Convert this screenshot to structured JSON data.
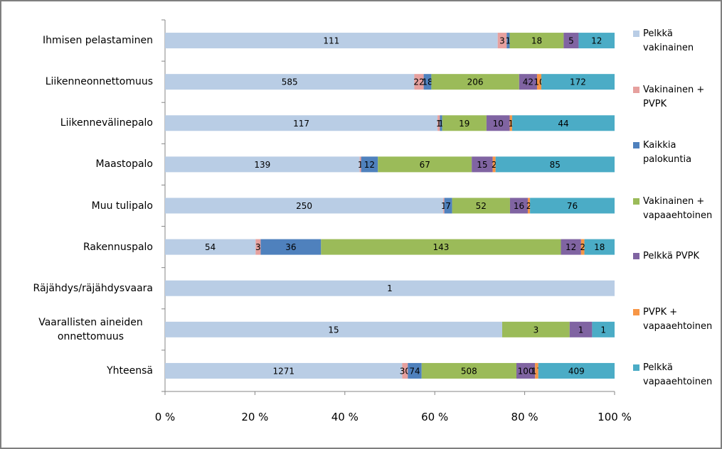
{
  "chart_data": {
    "type": "stacked-bar-100",
    "orientation": "horizontal",
    "categories": [
      "Ihmisen pelastaminen",
      "Liikenneonnettomuus",
      "Liikennevälinepalo",
      "Maastopalo",
      "Muu tulipalo",
      "Rakennuspalo",
      "Räjähdys/räjähdysvaara",
      "Vaarallisten aineiden onnettomuus",
      "Yhteensä"
    ],
    "series": [
      {
        "name": "Pelkkä vakinainen",
        "color": "#b9cde5",
        "values": [
          111,
          585,
          117,
          139,
          250,
          54,
          1,
          15,
          1271
        ]
      },
      {
        "name": "Vakinainen + PVPK",
        "color": "#e6a09e",
        "values": [
          3,
          22,
          1,
          1,
          1,
          3,
          null,
          null,
          30
        ]
      },
      {
        "name": "Kaikkia palokuntia",
        "color": "#4f81bd",
        "values": [
          1,
          18,
          1,
          12,
          7,
          36,
          null,
          null,
          74
        ]
      },
      {
        "name": "Vakinainen + vapaaehtoinen",
        "color": "#9bbb59",
        "values": [
          18,
          206,
          19,
          67,
          52,
          143,
          null,
          3,
          508
        ]
      },
      {
        "name": "Pelkkä PVPK",
        "color": "#8064a2",
        "values": [
          5,
          42,
          10,
          15,
          16,
          12,
          null,
          1,
          100
        ]
      },
      {
        "name": "PVPK + vapaaehtoinen",
        "color": "#f79646",
        "values": [
          null,
          10,
          1,
          2,
          2,
          2,
          null,
          null,
          17
        ]
      },
      {
        "name": "Pelkkä vapaaehtoinen",
        "color": "#4bacc6",
        "values": [
          12,
          172,
          44,
          85,
          76,
          18,
          null,
          1,
          409
        ]
      }
    ],
    "xlim": [
      0,
      100
    ],
    "xticks": [
      {
        "value": 0,
        "label": "0 %"
      },
      {
        "value": 20,
        "label": "20 %"
      },
      {
        "value": 40,
        "label": "40 %"
      },
      {
        "value": 60,
        "label": "60 %"
      },
      {
        "value": 80,
        "label": "80 %"
      },
      {
        "value": 100,
        "label": "100 %"
      }
    ],
    "legend": "right"
  }
}
